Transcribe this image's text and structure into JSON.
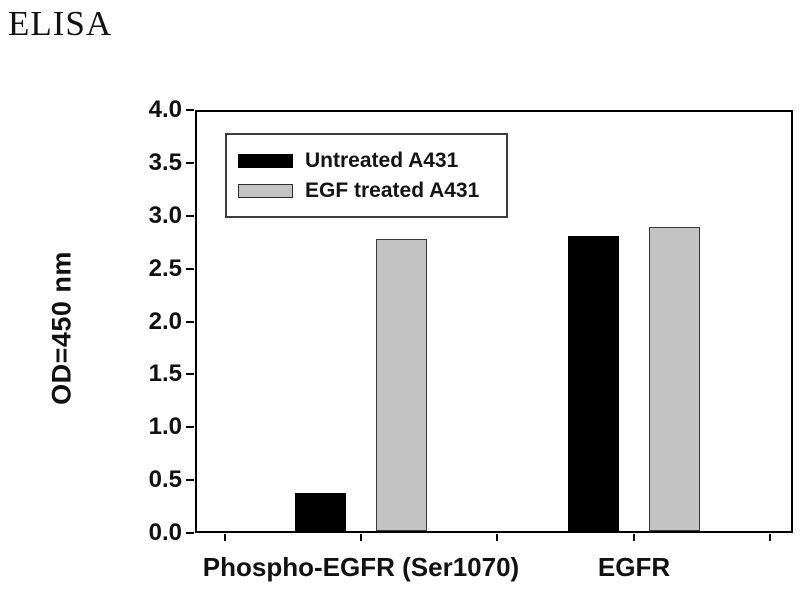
{
  "title": "ELISA",
  "chart_data": {
    "type": "bar",
    "categories": [
      "Phospho-EGFR (Ser1070)",
      "EGFR"
    ],
    "series": [
      {
        "name": "Untreated A431",
        "color": "#000000",
        "border": "#000000",
        "values": [
          0.36,
          2.79
        ]
      },
      {
        "name": "EGF treated A431",
        "color": "#c3c3c3",
        "border": "#3a3a3a",
        "values": [
          2.76,
          2.87
        ]
      }
    ],
    "xlabel": "",
    "ylabel": "OD=450 nm",
    "ylim": [
      0.0,
      4.0
    ],
    "ytick_step": 0.5,
    "ytick_labels": [
      "0.0",
      "0.5",
      "1.0",
      "1.5",
      "2.0",
      "2.5",
      "3.0",
      "3.5",
      "4.0"
    ],
    "grid": false,
    "legend_position": "top-left",
    "frame": "full-box"
  }
}
